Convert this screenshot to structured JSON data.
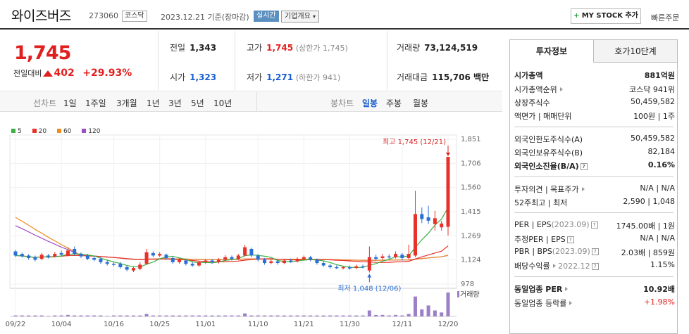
{
  "header": {
    "stock_name": "와이즈버즈",
    "stock_code": "273060",
    "market_badge": "코스닥",
    "date_text": "2023.12.21 기준(장마감)",
    "live_badge": "실시간",
    "overview_label": "기업개요",
    "mystock_label": "MY STOCK 추가",
    "quick_order_label": "빠른주문"
  },
  "price": {
    "current": "1,745",
    "change_label": "전일대비",
    "change_value": "402",
    "change_pct": "+29.93%"
  },
  "summary": {
    "prev_close_label": "전일",
    "prev_close": "1,343",
    "high_label": "고가",
    "high": "1,745",
    "upper_limit": "(상한가 1,745)",
    "volume_label": "거래량",
    "volume": "73,124,519",
    "open_label": "시가",
    "open": "1,323",
    "low_label": "저가",
    "low": "1,271",
    "lower_limit": "(하한가 941)",
    "amount_label": "거래대금",
    "amount": "115,706 백만"
  },
  "chart_tabs": {
    "period_title": "선차트",
    "periods": [
      "1일",
      "1주일",
      "3개월",
      "1년",
      "3년",
      "5년",
      "10년"
    ],
    "candle_title": "봉차트",
    "candles": [
      "일봉",
      "주봉",
      "월봉"
    ],
    "active_candle": "일봉"
  },
  "legend": [
    {
      "label": "5",
      "color": "#3cb043"
    },
    {
      "label": "20",
      "color": "#e8312a"
    },
    {
      "label": "60",
      "color": "#f08c1e"
    },
    {
      "label": "120",
      "color": "#9b4fc4"
    }
  ],
  "chart_data": {
    "type": "candlestick",
    "x_tick_labels": [
      "09/22",
      "10/04",
      "10/16",
      "10/25",
      "11/01",
      "11/10",
      "11/21",
      "11/30",
      "12/11",
      "12/20"
    ],
    "y_tick_labels": [
      "1,851",
      "1,706",
      "1,560",
      "1,415",
      "1,269",
      "1,124",
      "978"
    ],
    "ylim": [
      978,
      1851
    ],
    "annotations": {
      "high_label": "최고 1,745 (12/21)",
      "low_label": "최저 1,048 (12/06)"
    },
    "volume_label": "거래량",
    "candles": [
      {
        "o": 1175,
        "c": 1150,
        "h": 1185,
        "l": 1140
      },
      {
        "o": 1160,
        "c": 1145,
        "h": 1168,
        "l": 1138
      },
      {
        "o": 1150,
        "c": 1135,
        "h": 1158,
        "l": 1125
      },
      {
        "o": 1140,
        "c": 1125,
        "h": 1150,
        "l": 1115
      },
      {
        "o": 1130,
        "c": 1155,
        "h": 1165,
        "l": 1122
      },
      {
        "o": 1150,
        "c": 1140,
        "h": 1160,
        "l": 1132
      },
      {
        "o": 1145,
        "c": 1160,
        "h": 1172,
        "l": 1138
      },
      {
        "o": 1165,
        "c": 1155,
        "h": 1180,
        "l": 1148
      },
      {
        "o": 1150,
        "c": 1180,
        "h": 1200,
        "l": 1145
      },
      {
        "o": 1190,
        "c": 1160,
        "h": 1205,
        "l": 1150
      },
      {
        "o": 1160,
        "c": 1145,
        "h": 1168,
        "l": 1135
      },
      {
        "o": 1150,
        "c": 1130,
        "h": 1160,
        "l": 1122
      },
      {
        "o": 1135,
        "c": 1125,
        "h": 1145,
        "l": 1115
      },
      {
        "o": 1130,
        "c": 1110,
        "h": 1140,
        "l": 1100
      },
      {
        "o": 1110,
        "c": 1100,
        "h": 1120,
        "l": 1090
      },
      {
        "o": 1100,
        "c": 1095,
        "h": 1110,
        "l": 1085
      },
      {
        "o": 1100,
        "c": 1080,
        "h": 1112,
        "l": 1070
      },
      {
        "o": 1080,
        "c": 1065,
        "h": 1090,
        "l": 1055
      },
      {
        "o": 1060,
        "c": 1075,
        "h": 1085,
        "l": 1050
      },
      {
        "o": 1070,
        "c": 1095,
        "h": 1110,
        "l": 1062
      },
      {
        "o": 1100,
        "c": 1170,
        "h": 1190,
        "l": 1095
      },
      {
        "o": 1165,
        "c": 1150,
        "h": 1175,
        "l": 1140
      },
      {
        "o": 1150,
        "c": 1160,
        "h": 1170,
        "l": 1142
      },
      {
        "o": 1155,
        "c": 1135,
        "h": 1162,
        "l": 1125
      },
      {
        "o": 1135,
        "c": 1110,
        "h": 1145,
        "l": 1100
      },
      {
        "o": 1110,
        "c": 1125,
        "h": 1135,
        "l": 1100
      },
      {
        "o": 1120,
        "c": 1100,
        "h": 1128,
        "l": 1090
      },
      {
        "o": 1100,
        "c": 1090,
        "h": 1110,
        "l": 1082
      },
      {
        "o": 1090,
        "c": 1110,
        "h": 1120,
        "l": 1082
      },
      {
        "o": 1110,
        "c": 1120,
        "h": 1128,
        "l": 1100
      },
      {
        "o": 1120,
        "c": 1110,
        "h": 1130,
        "l": 1100
      },
      {
        "o": 1110,
        "c": 1125,
        "h": 1135,
        "l": 1102
      },
      {
        "o": 1125,
        "c": 1140,
        "h": 1152,
        "l": 1118
      },
      {
        "o": 1140,
        "c": 1130,
        "h": 1150,
        "l": 1120
      },
      {
        "o": 1130,
        "c": 1150,
        "h": 1160,
        "l": 1122
      },
      {
        "o": 1150,
        "c": 1200,
        "h": 1215,
        "l": 1145
      },
      {
        "o": 1190,
        "c": 1150,
        "h": 1198,
        "l": 1140
      },
      {
        "o": 1150,
        "c": 1125,
        "h": 1160,
        "l": 1115
      },
      {
        "o": 1125,
        "c": 1105,
        "h": 1135,
        "l": 1095
      },
      {
        "o": 1105,
        "c": 1115,
        "h": 1125,
        "l": 1098
      },
      {
        "o": 1115,
        "c": 1105,
        "h": 1125,
        "l": 1095
      },
      {
        "o": 1105,
        "c": 1120,
        "h": 1130,
        "l": 1098
      },
      {
        "o": 1120,
        "c": 1115,
        "h": 1132,
        "l": 1105
      },
      {
        "o": 1115,
        "c": 1130,
        "h": 1140,
        "l": 1108
      },
      {
        "o": 1130,
        "c": 1140,
        "h": 1150,
        "l": 1122
      },
      {
        "o": 1140,
        "c": 1125,
        "h": 1148,
        "l": 1115
      },
      {
        "o": 1125,
        "c": 1105,
        "h": 1132,
        "l": 1095
      },
      {
        "o": 1105,
        "c": 1090,
        "h": 1115,
        "l": 1082
      },
      {
        "o": 1090,
        "c": 1080,
        "h": 1100,
        "l": 1070
      },
      {
        "o": 1080,
        "c": 1075,
        "h": 1092,
        "l": 1068
      },
      {
        "o": 1075,
        "c": 1080,
        "h": 1088,
        "l": 1066
      },
      {
        "o": 1080,
        "c": 1072,
        "h": 1090,
        "l": 1065
      },
      {
        "o": 1075,
        "c": 1085,
        "h": 1095,
        "l": 1068
      },
      {
        "o": 1085,
        "c": 1080,
        "h": 1095,
        "l": 1072
      },
      {
        "o": 1060,
        "c": 1140,
        "h": 1205,
        "l": 1048
      },
      {
        "o": 1140,
        "c": 1130,
        "h": 1155,
        "l": 1120
      },
      {
        "o": 1135,
        "c": 1145,
        "h": 1160,
        "l": 1125
      },
      {
        "o": 1145,
        "c": 1140,
        "h": 1158,
        "l": 1130
      },
      {
        "o": 1140,
        "c": 1160,
        "h": 1175,
        "l": 1132
      },
      {
        "o": 1155,
        "c": 1135,
        "h": 1165,
        "l": 1120
      },
      {
        "o": 1135,
        "c": 1160,
        "h": 1215,
        "l": 1128
      },
      {
        "o": 1150,
        "c": 1400,
        "h": 1540,
        "l": 1140
      },
      {
        "o": 1400,
        "c": 1370,
        "h": 1440,
        "l": 1345
      },
      {
        "o": 1380,
        "c": 1360,
        "h": 1450,
        "l": 1340
      },
      {
        "o": 1340,
        "c": 1375,
        "h": 1420,
        "l": 1300
      },
      {
        "o": 1320,
        "c": 1343,
        "h": 1360,
        "l": 1300
      },
      {
        "o": 1323,
        "c": 1745,
        "h": 1745,
        "l": 1271
      }
    ],
    "volumes": [
      2,
      2,
      2,
      2,
      2,
      1,
      2,
      2,
      3,
      2,
      2,
      2,
      2,
      2,
      1,
      2,
      2,
      2,
      2,
      2,
      5,
      2,
      2,
      2,
      2,
      2,
      2,
      2,
      2,
      2,
      2,
      2,
      2,
      2,
      2,
      6,
      2,
      2,
      2,
      2,
      2,
      2,
      2,
      2,
      2,
      2,
      2,
      2,
      2,
      2,
      2,
      2,
      2,
      2,
      12,
      3,
      3,
      2,
      3,
      2,
      5,
      40,
      14,
      22,
      12,
      8,
      48
    ]
  },
  "panel": {
    "tab_invest": "투자정보",
    "tab_hoga": "호가10단계",
    "mcap_label": "시가총액",
    "mcap": "881억원",
    "mcap_rank_label": "시가총액순위",
    "mcap_rank": "코스닥 941위",
    "shares_label": "상장주식수",
    "shares": "50,459,582",
    "par_label": "액면가 | 매매단위",
    "par": "100원 | 1주",
    "foreign_limit_label": "외국인한도주식수(A)",
    "foreign_limit": "50,459,582",
    "foreign_hold_label": "외국인보유주식수(B)",
    "foreign_hold": "82,184",
    "foreign_ratio_label": "외국인소진율(B/A)",
    "foreign_ratio": "0.16%",
    "opinion_label": "투자의견 | 목표주가",
    "opinion": "N/A | N/A",
    "w52_label": "52주최고 | 최저",
    "w52": "2,590 | 1,048",
    "per_label": "PER | EPS",
    "per_period": "(2023.09)",
    "per": "1745.00배 | 1원",
    "est_per_label": "추정PER | EPS",
    "est_per": "N/A | N/A",
    "pbr_label": "PBR | BPS",
    "pbr_period": "(2023.09)",
    "pbr": "2.03배 | 859원",
    "div_label": "배당수익률",
    "div_period": "2022.12",
    "div": "1.15%",
    "sector_per_label": "동일업종 PER",
    "sector_per": "10.92배",
    "sector_change_label": "동일업종 등락률",
    "sector_change": "+1.98%"
  }
}
